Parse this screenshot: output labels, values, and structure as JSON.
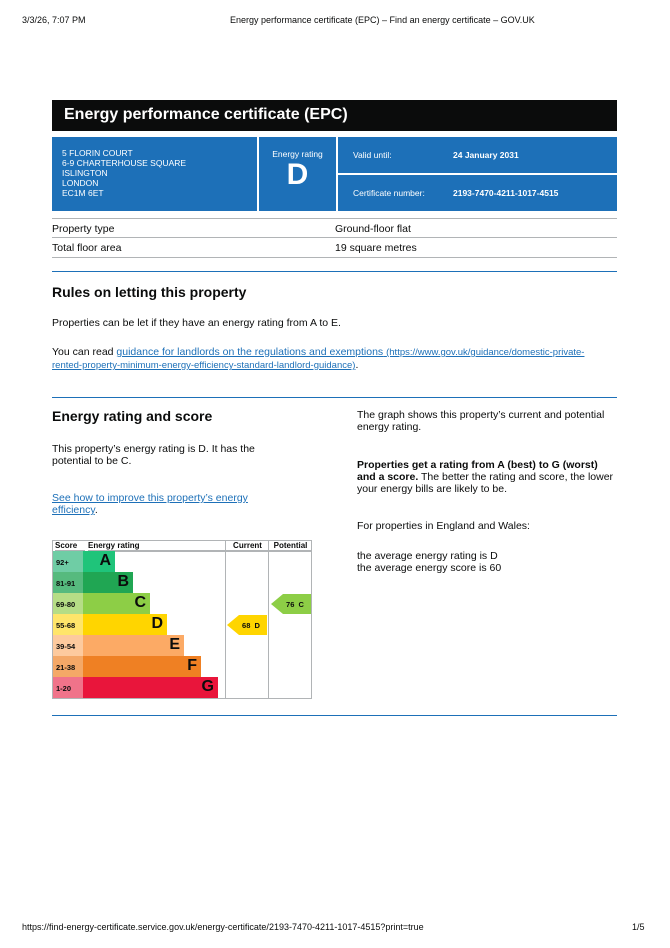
{
  "browser": {
    "datetime": "3/3/26, 7:07 PM",
    "title": "Energy performance certificate (EPC) – Find an energy certificate – GOV.UK",
    "url": "https://find-energy-certificate.service.gov.uk/energy-certificate/2193-7470-4211-1017-4515?print=true",
    "page": "1/5"
  },
  "header": {
    "title": "Energy performance certificate (EPC)"
  },
  "address": [
    "5 FLORIN COURT",
    "6-9 CHARTERHOUSE SQUARE",
    "ISLINGTON",
    "LONDON",
    "EC1M 6ET"
  ],
  "rating": {
    "label": "Energy rating",
    "value": "D"
  },
  "valid": {
    "label": "Valid until:",
    "value": "24 January 2031"
  },
  "cert": {
    "label": "Certificate number:",
    "value": "2193-7470-4211-1017-4515"
  },
  "property": [
    {
      "label": "Property type",
      "value": "Ground-floor flat"
    },
    {
      "label": "Total floor area",
      "value": "19 square metres"
    }
  ],
  "rules": {
    "heading": "Rules on letting this property",
    "p1": "Properties can be let if they have an energy rating from A to E.",
    "p2_pre": "You can read ",
    "p2_link": "guidance for landlords on the regulations and exemptions",
    "p2_url": "(https://www.gov.uk/guidance/domestic-private-rented-property-minimum-energy-efficiency-standard-landlord-guidance)",
    "p2_post": "."
  },
  "score": {
    "heading": "Energy rating and score",
    "p1": "This property’s energy rating is D. It has the potential to be C.",
    "link": "See how to improve this property’s energy efficiency",
    "link_post": ".",
    "r1": "The graph shows this property’s current and potential energy rating.",
    "r2_bold": "Properties get a rating from A (best) to G (worst) and a score.",
    "r2_rest": " The better the rating and score, the lower your energy bills are likely to be.",
    "r3": "For properties in England and Wales:",
    "r4": "the average energy rating is D",
    "r5": "the average energy score is 60"
  },
  "chart_data": {
    "type": "bar",
    "headers": [
      "Score",
      "Energy rating",
      "Current",
      "Potential"
    ],
    "bands": [
      {
        "score": "92+",
        "letter": "A",
        "color": "#1fc47a",
        "light": "#6fcda5"
      },
      {
        "score": "81-91",
        "letter": "B",
        "color": "#20a653",
        "light": "#56ba7e"
      },
      {
        "score": "69-80",
        "letter": "C",
        "color": "#8dce46",
        "light": "#b6dd86"
      },
      {
        "score": "55-68",
        "letter": "D",
        "color": "#ffd500",
        "light": "#ffe56a"
      },
      {
        "score": "39-54",
        "letter": "E",
        "color": "#fcaa65",
        "light": "#fdca9e"
      },
      {
        "score": "21-38",
        "letter": "F",
        "color": "#ef8023",
        "light": "#f4a867"
      },
      {
        "score": "1-20",
        "letter": "G",
        "color": "#e9153b",
        "light": "#f0738a"
      }
    ],
    "current": {
      "score": 68,
      "letter": "D",
      "label": "68  D",
      "color": "#ffd500"
    },
    "potential": {
      "score": 76,
      "letter": "C",
      "label": "76  C",
      "color": "#8dce46"
    }
  }
}
